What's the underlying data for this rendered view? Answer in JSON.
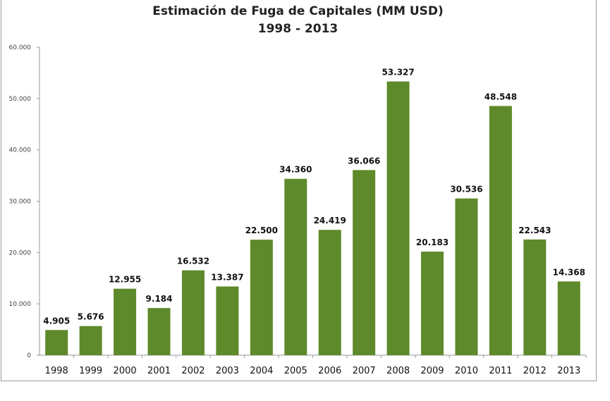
{
  "chart_data": {
    "type": "bar",
    "title": "Estimación de Fuga de Capitales (MM USD)",
    "subtitle": "1998 - 2013",
    "xlabel": "",
    "ylabel": "",
    "categories": [
      "1998",
      "1999",
      "2000",
      "2001",
      "2002",
      "2003",
      "2004",
      "2005",
      "2006",
      "2007",
      "2008",
      "2009",
      "2010",
      "2011",
      "2012",
      "2013"
    ],
    "values": [
      4905,
      5676,
      12955,
      9184,
      16532,
      13387,
      22500,
      34360,
      24419,
      36066,
      53327,
      20183,
      30536,
      48548,
      22543,
      14368
    ],
    "data_labels": [
      "4.905",
      "5.676",
      "12.955",
      "9.184",
      "16.532",
      "13.387",
      "22.500",
      "34.360",
      "24.419",
      "36.066",
      "53.327",
      "20.183",
      "30.536",
      "48.548",
      "22.543",
      "14.368"
    ],
    "ylim": [
      0,
      60000
    ],
    "yticks": [
      0,
      10000,
      20000,
      30000,
      40000,
      50000,
      60000
    ],
    "ytick_labels": [
      "0",
      "10.000",
      "20.000",
      "30.000",
      "40.000",
      "50.000",
      "60.000"
    ],
    "grid": false,
    "legend": "none",
    "bar_color": "#5e8a2b"
  }
}
